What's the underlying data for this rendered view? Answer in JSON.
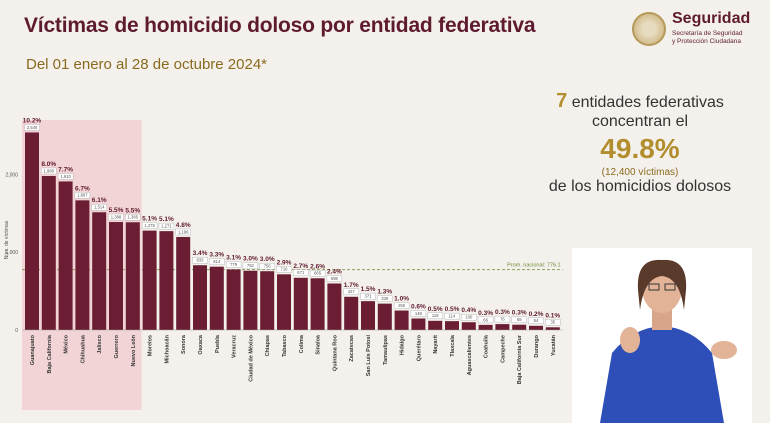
{
  "header": {
    "title": "Víctimas de homicidio doloso por entidad federativa",
    "subtitle": "Del 01 enero al 28 de octubre 2024*"
  },
  "logo": {
    "name": "Seguridad",
    "sub1": "Secretaría de Seguridad",
    "sub2": "y Protección Ciudadana"
  },
  "info": {
    "count": "7",
    "line1": "entidades federativas",
    "line2": "concentran el",
    "percent": "49.8%",
    "victims": "(12,400 víctimas)",
    "line3": "de los homicidios dolosos"
  },
  "chart_data": {
    "type": "bar",
    "ylabel": "Núm. de víctimas",
    "yticks": [
      0,
      1000,
      2000
    ],
    "ytick_labels": [
      "0",
      "1,000",
      "2,000"
    ],
    "ylim": [
      0,
      2700
    ],
    "reference_line": {
      "label": "Prom. nacional: 776.1",
      "value": 776.1
    },
    "highlight_count": 7,
    "colors": {
      "bar": "#6b1e33",
      "highlight_bg": "#f2c9cf",
      "ref_line": "#8aa05a"
    },
    "categories": [
      "Guanajuato",
      "Baja California",
      "México",
      "Chihuahua",
      "Jalisco",
      "Guerrero",
      "Nuevo León",
      "Morelos",
      "Michoacán",
      "Sonora",
      "Oaxaca",
      "Puebla",
      "Veracruz",
      "Ciudad de México",
      "Chiapas",
      "Tabasco",
      "Colima",
      "Sinaloa",
      "Quintana Roo",
      "Zacatecas",
      "San Luis Potosí",
      "Tamaulipas",
      "Hidalgo",
      "Querétaro",
      "Nayarit",
      "Tlaxcala",
      "Aguascalientes",
      "Coahuila",
      "Campeche",
      "Baja California Sur",
      "Durango",
      "Yucatán"
    ],
    "values": [
      2540,
      1980,
      1910,
      1667,
      1514,
      1388,
      1385,
      1278,
      1271,
      1196,
      833,
      814,
      779,
      762,
      756,
      716,
      671,
      665,
      598,
      427,
      371,
      339,
      250,
      148,
      118,
      114,
      100,
      66,
      76,
      68,
      54,
      35
    ],
    "percent_labels": [
      "10.2%",
      "8.0%",
      "7.7%",
      "6.7%",
      "6.1%",
      "5.5%",
      "5.5%",
      "5.1%",
      "5.1%",
      "4.8%",
      "3.4%",
      "3.3%",
      "3.1%",
      "3.0%",
      "3.0%",
      "2.9%",
      "2.7%",
      "2.6%",
      "2.4%",
      "1.7%",
      "1.5%",
      "1.3%",
      "1.0%",
      "0.6%",
      "0.5%",
      "0.5%",
      "0.4%",
      "0.3%",
      "0.3%",
      "0.3%",
      "0.2%",
      "0.1%"
    ],
    "count_labels": [
      "2,540",
      "1,980",
      "1,910",
      "1,667",
      "1,514",
      "1,388",
      "1,385",
      "1,278",
      "1,271",
      "1,196",
      "833",
      "814",
      "779",
      "762",
      "756",
      "716",
      "671",
      "665",
      "598",
      "427",
      "371",
      "339",
      "250",
      "148",
      "118",
      "114",
      "100",
      "66",
      "76",
      "68",
      "54",
      "35"
    ]
  }
}
